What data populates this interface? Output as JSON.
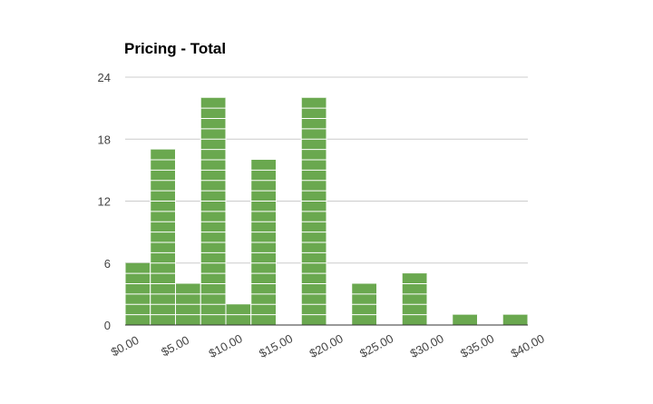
{
  "chart_data": {
    "type": "bar",
    "title": "Pricing - Total",
    "xlabel": "",
    "ylabel": "",
    "ylim": [
      0,
      24
    ],
    "yticks": [
      "0",
      "6",
      "12",
      "18",
      "24"
    ],
    "xlim": [
      0,
      40
    ],
    "xticks": [
      "$0.00",
      "$5.00",
      "$10.00",
      "$15.00",
      "$20.00",
      "$25.00",
      "$30.00",
      "$35.00",
      "$40.00"
    ],
    "bin_width": 2.5,
    "bins": [
      {
        "start": 0,
        "count": 6
      },
      {
        "start": 2.5,
        "count": 17
      },
      {
        "start": 5,
        "count": 4
      },
      {
        "start": 7.5,
        "count": 22
      },
      {
        "start": 10,
        "count": 2
      },
      {
        "start": 12.5,
        "count": 16
      },
      {
        "start": 15,
        "count": 0
      },
      {
        "start": 17.5,
        "count": 22
      },
      {
        "start": 20,
        "count": 0
      },
      {
        "start": 22.5,
        "count": 4
      },
      {
        "start": 25,
        "count": 0
      },
      {
        "start": 27.5,
        "count": 5
      },
      {
        "start": 30,
        "count": 0
      },
      {
        "start": 32.5,
        "count": 1
      },
      {
        "start": 35,
        "count": 0
      },
      {
        "start": 37.5,
        "count": 1
      }
    ],
    "grid": true,
    "legend": "none",
    "bar_color": "#6aa84f",
    "segment_color": "#ffffff"
  }
}
